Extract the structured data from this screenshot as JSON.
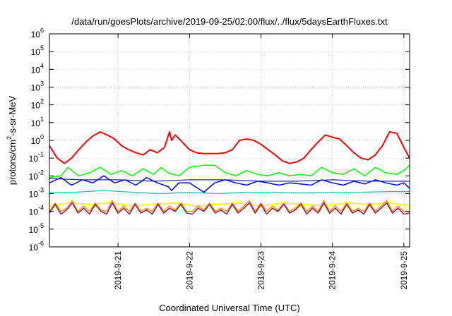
{
  "chart_data": {
    "type": "line",
    "title": "/data/run/goesPlots/archive/2019-09-25/02:00/flux/../flux/5daysEarthFluxes.txt",
    "xlabel": "Coordinated Universal Time (UTC)",
    "ylabel_parts": [
      "protons/cm",
      "2",
      "-s-sr-MeV"
    ],
    "y_scale": "log",
    "ylim": [
      1e-06,
      1000000.0
    ],
    "x_range_days": [
      20.04,
      25.08
    ],
    "x_ticks": [
      {
        "day": 21,
        "label": "2019-9-21"
      },
      {
        "day": 22,
        "label": "2019-9-22"
      },
      {
        "day": 23,
        "label": "2019-9-23"
      },
      {
        "day": 24,
        "label": "2019-9-24"
      },
      {
        "day": 25,
        "label": "2019-9-25"
      }
    ],
    "y_ticks": [
      {
        "exp": -6,
        "base": "10",
        "sup": "-6"
      },
      {
        "exp": -5,
        "base": "10",
        "sup": "-5"
      },
      {
        "exp": -4,
        "base": "10",
        "sup": "-4"
      },
      {
        "exp": -3,
        "base": "10",
        "sup": "-3"
      },
      {
        "exp": -2,
        "base": "10",
        "sup": "-2"
      },
      {
        "exp": -1,
        "base": "10",
        "sup": "-1"
      },
      {
        "exp": 0,
        "base": "10",
        "sup": "0"
      },
      {
        "exp": 1,
        "base": "10",
        "sup": "1"
      },
      {
        "exp": 2,
        "base": "10",
        "sup": "2"
      },
      {
        "exp": 3,
        "base": "10",
        "sup": "3"
      },
      {
        "exp": 4,
        "base": "10",
        "sup": "4"
      },
      {
        "exp": 5,
        "base": "10",
        "sup": "5"
      },
      {
        "exp": 6,
        "base": "10",
        "sup": "6"
      }
    ],
    "grid": true,
    "series": [
      {
        "color": "#ff0000",
        "width": 2.0,
        "x": [
          20.04,
          20.15,
          20.25,
          20.35,
          20.45,
          20.55,
          20.65,
          20.75,
          20.85,
          20.95,
          21.05,
          21.15,
          21.25,
          21.35,
          21.45,
          21.55,
          21.65,
          21.72,
          21.75,
          21.8,
          21.9,
          22.0,
          22.1,
          22.2,
          22.3,
          22.4,
          22.5,
          22.6,
          22.7,
          22.8,
          22.9,
          23.0,
          23.1,
          23.2,
          23.3,
          23.4,
          23.5,
          23.6,
          23.7,
          23.8,
          23.9,
          24.0,
          24.1,
          24.2,
          24.3,
          24.4,
          24.5,
          24.6,
          24.7,
          24.8,
          24.9,
          25.0,
          25.08
        ],
        "y": [
          0.5,
          0.1,
          0.05,
          0.1,
          0.3,
          0.8,
          1.8,
          3.0,
          2.0,
          1.2,
          0.5,
          0.3,
          0.2,
          0.15,
          0.3,
          0.2,
          0.4,
          3.0,
          1.0,
          2.0,
          0.8,
          0.3,
          0.2,
          0.18,
          0.18,
          0.18,
          0.2,
          0.3,
          1.0,
          1.2,
          1.0,
          0.6,
          0.3,
          0.15,
          0.07,
          0.05,
          0.06,
          0.1,
          0.3,
          0.8,
          2.0,
          1.5,
          1.2,
          0.5,
          0.2,
          0.1,
          0.08,
          0.15,
          0.5,
          3.0,
          2.5,
          0.4,
          0.1
        ]
      },
      {
        "color": "#00ff00",
        "width": 1.5,
        "x": [
          20.04,
          20.2,
          20.3,
          20.45,
          20.6,
          20.75,
          20.9,
          21.05,
          21.2,
          21.35,
          21.5,
          21.6,
          21.7,
          21.85,
          22.0,
          22.2,
          22.35,
          22.5,
          22.65,
          22.8,
          22.95,
          23.1,
          23.25,
          23.4,
          23.55,
          23.7,
          23.85,
          24.0,
          24.15,
          24.3,
          24.45,
          24.6,
          24.75,
          24.9,
          25.0,
          25.08
        ],
        "y": [
          0.008,
          0.01,
          0.03,
          0.01,
          0.015,
          0.03,
          0.012,
          0.02,
          0.01,
          0.025,
          0.012,
          0.03,
          0.015,
          0.01,
          0.03,
          0.04,
          0.04,
          0.015,
          0.01,
          0.02,
          0.012,
          0.01,
          0.015,
          0.01,
          0.012,
          0.01,
          0.03,
          0.015,
          0.012,
          0.025,
          0.01,
          0.03,
          0.015,
          0.012,
          0.02,
          0.04
        ]
      },
      {
        "color": "#0000ff",
        "width": 1.5,
        "x": [
          20.04,
          20.2,
          20.35,
          20.5,
          20.65,
          20.8,
          20.95,
          21.1,
          21.25,
          21.4,
          21.55,
          21.7,
          21.75,
          21.85,
          22.0,
          22.2,
          22.35,
          22.5,
          22.65,
          22.8,
          22.95,
          23.1,
          23.25,
          23.4,
          23.55,
          23.7,
          23.85,
          24.0,
          24.15,
          24.3,
          24.45,
          24.6,
          24.75,
          24.9,
          25.0,
          25.08
        ],
        "y": [
          0.004,
          0.008,
          0.003,
          0.006,
          0.004,
          0.01,
          0.004,
          0.006,
          0.003,
          0.008,
          0.004,
          0.0025,
          0.0015,
          0.004,
          0.004,
          0.0012,
          0.004,
          0.006,
          0.004,
          0.003,
          0.005,
          0.004,
          0.003,
          0.004,
          0.0035,
          0.003,
          0.006,
          0.004,
          0.003,
          0.005,
          0.0035,
          0.006,
          0.004,
          0.003,
          0.004,
          0.002
        ]
      },
      {
        "color": "#1a2a9f",
        "width": 1.2,
        "x": [
          20.04,
          20.5,
          21.0,
          21.5,
          22.0,
          22.5,
          23.0,
          23.5,
          24.0,
          24.5,
          25.08
        ],
        "y": [
          0.007,
          0.006,
          0.006,
          0.005,
          0.006,
          0.006,
          0.005,
          0.005,
          0.006,
          0.005,
          0.005
        ]
      },
      {
        "color": "#20c0b0",
        "width": 1.2,
        "x": [
          20.04,
          20.4,
          20.8,
          21.2,
          21.6,
          22.0,
          22.4,
          22.8,
          23.2,
          23.6,
          24.0,
          24.4,
          24.8,
          25.08
        ],
        "y": [
          0.0012,
          0.0012,
          0.0015,
          0.0012,
          0.001,
          0.0012,
          0.001,
          0.0012,
          0.0012,
          0.0011,
          0.0012,
          0.0012,
          0.0013,
          0.0013
        ]
      },
      {
        "color": "#ffff00",
        "width": 1.8,
        "x": [
          20.04,
          20.3,
          20.6,
          20.9,
          21.2,
          21.5,
          21.8,
          22.1,
          22.4,
          22.7,
          23.0,
          23.3,
          23.6,
          23.9,
          24.2,
          24.5,
          24.8,
          25.08
        ],
        "y": [
          0.0002,
          0.0003,
          0.00025,
          0.0003,
          0.0002,
          0.00025,
          0.0003,
          0.0002,
          0.00025,
          0.0003,
          0.0002,
          0.0003,
          0.00025,
          0.0002,
          0.0003,
          0.00025,
          0.0003,
          0.0002
        ]
      },
      {
        "color": "#ff8c00",
        "width": 1.5,
        "x": [
          20.04,
          20.12,
          20.2,
          20.28,
          20.36,
          20.44,
          20.52,
          20.6,
          20.68,
          20.76,
          20.84,
          20.92,
          21.0,
          21.08,
          21.16,
          21.24,
          21.32,
          21.4,
          21.48,
          21.56,
          21.64,
          21.72,
          21.8,
          21.88,
          21.96,
          22.04,
          22.12,
          22.2,
          22.28,
          22.36,
          22.44,
          22.52,
          22.6,
          22.68,
          22.76,
          22.84,
          22.92,
          23.0,
          23.08,
          23.16,
          23.24,
          23.32,
          23.4,
          23.48,
          23.56,
          23.64,
          23.72,
          23.8,
          23.88,
          23.96,
          24.04,
          24.12,
          24.2,
          24.28,
          24.36,
          24.44,
          24.52,
          24.6,
          24.68,
          24.76,
          24.84,
          24.92,
          25.0,
          25.08
        ],
        "y": [
          0.0001,
          0.0003,
          0.0001,
          0.00015,
          0.0004,
          0.0001,
          0.0002,
          0.0001,
          0.0003,
          0.00012,
          0.0001,
          0.0004,
          0.0001,
          0.0002,
          0.0001,
          0.0003,
          0.0001,
          0.00015,
          0.0001,
          0.0003,
          0.0001,
          0.0002,
          0.00012,
          0.0003,
          0.0001,
          0.0001,
          0.0002,
          0.00012,
          0.0003,
          0.0001,
          0.00015,
          0.0001,
          0.0003,
          0.0001,
          0.0002,
          0.0004,
          0.0001,
          0.0003,
          0.0001,
          0.0002,
          0.00012,
          0.0003,
          0.0001,
          0.00015,
          0.0003,
          0.0001,
          0.0002,
          0.0001,
          0.0004,
          0.0001,
          0.0002,
          0.0001,
          0.0003,
          0.0001,
          0.00015,
          0.0001,
          0.0003,
          0.0001,
          0.0002,
          0.0004,
          0.0001,
          0.0002,
          0.0001,
          0.0001
        ]
      },
      {
        "color": "#8b1a5a",
        "width": 1.5,
        "x": [
          20.04,
          20.12,
          20.2,
          20.28,
          20.36,
          20.44,
          20.52,
          20.6,
          20.68,
          20.76,
          20.84,
          20.92,
          21.0,
          21.08,
          21.16,
          21.24,
          21.32,
          21.4,
          21.48,
          21.56,
          21.64,
          21.72,
          21.8,
          21.88,
          21.96,
          22.04,
          22.12,
          22.2,
          22.28,
          22.36,
          22.44,
          22.52,
          22.6,
          22.68,
          22.76,
          22.84,
          22.92,
          23.0,
          23.08,
          23.16,
          23.24,
          23.32,
          23.4,
          23.48,
          23.56,
          23.64,
          23.72,
          23.8,
          23.88,
          23.96,
          24.04,
          24.12,
          24.2,
          24.28,
          24.36,
          24.44,
          24.52,
          24.6,
          24.68,
          24.76,
          24.84,
          24.92,
          25.0,
          25.08
        ],
        "y": [
          8e-05,
          0.00025,
          7e-05,
          0.00012,
          0.0003,
          8e-05,
          0.00015,
          7e-05,
          0.00025,
          0.0001,
          7e-05,
          0.0003,
          8e-05,
          0.00015,
          7e-05,
          0.00025,
          8e-05,
          0.00012,
          7e-05,
          0.00025,
          8e-05,
          0.00015,
          0.0001,
          0.00025,
          8e-05,
          7e-05,
          0.00015,
          0.0001,
          0.00025,
          8e-05,
          0.00012,
          7e-05,
          0.00025,
          8e-05,
          0.00015,
          0.0003,
          8e-05,
          0.00025,
          7e-05,
          0.00015,
          0.0001,
          0.00025,
          8e-05,
          0.00012,
          0.00025,
          7e-05,
          0.00015,
          8e-05,
          0.0003,
          8e-05,
          0.00015,
          7e-05,
          0.00025,
          8e-05,
          0.00012,
          7e-05,
          0.00025,
          8e-05,
          0.00015,
          0.0003,
          8e-05,
          0.00015,
          7e-05,
          8e-05
        ]
      }
    ]
  }
}
